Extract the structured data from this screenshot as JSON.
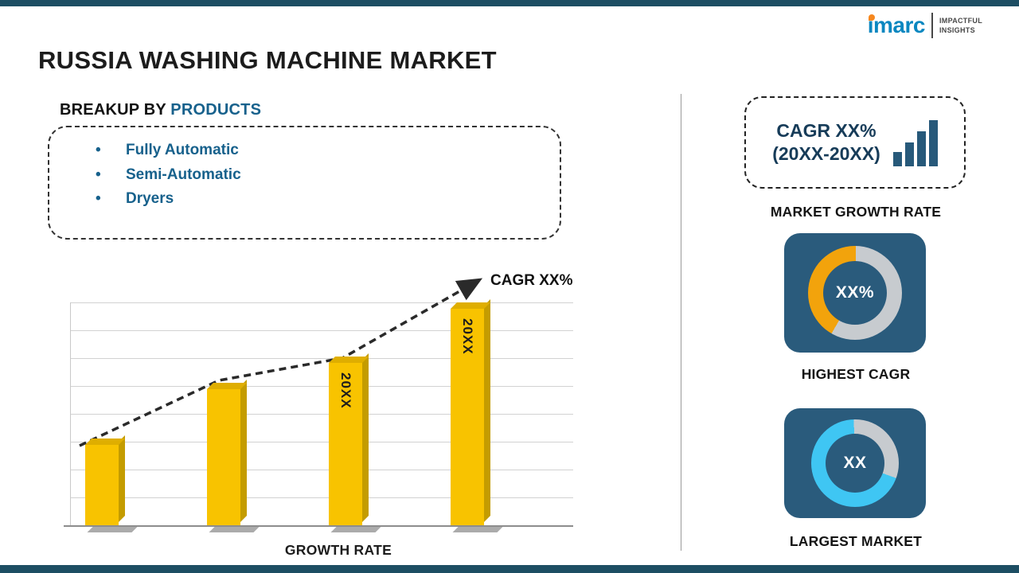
{
  "page": {
    "title": "RUSSIA WASHING MACHINE MARKET"
  },
  "logo": {
    "brand": "imarc",
    "tagline_line1": "IMPACTFUL",
    "tagline_line2": "INSIGHTS"
  },
  "breakup": {
    "prefix": "BREAKUP BY",
    "highlight": "PRODUCTS",
    "items": [
      "Fully Automatic",
      "Semi-Automatic",
      "Dryers"
    ]
  },
  "chart_data": [
    {
      "type": "bar",
      "title": "GROWTH RATE",
      "categories": [
        "",
        "",
        "20XX",
        "20XX"
      ],
      "values": [
        37,
        63,
        75,
        100
      ],
      "bar_labels": [
        "",
        "",
        "20XX",
        "20XX"
      ],
      "unit": "relative growth index (axis unlabeled, 0-100 of max bar)",
      "xlabel": "GROWTH RATE",
      "annotation": "CAGR XX%",
      "bar_color": "#f8c300",
      "trend": "dashed rising arrow over bars",
      "grid": true,
      "ylim": [
        0,
        100
      ]
    },
    {
      "type": "donut",
      "label": "HIGHEST CAGR",
      "value_text": "XX%",
      "segment_percent": 42,
      "segment_color": "#f2a30c",
      "track_color": "#c7cbcf",
      "start_deg": 210
    },
    {
      "type": "donut",
      "label": "LARGEST MARKET",
      "value_text": "XX",
      "segment_percent": 69,
      "segment_color": "#3fc6f3",
      "track_color": "#c7cbcf",
      "start_deg": 110
    }
  ],
  "right_panel": {
    "cagr_line1": "CAGR XX%",
    "cagr_line2": "(20XX-20XX)",
    "growth_rate_caption": "MARKET GROWTH RATE"
  }
}
